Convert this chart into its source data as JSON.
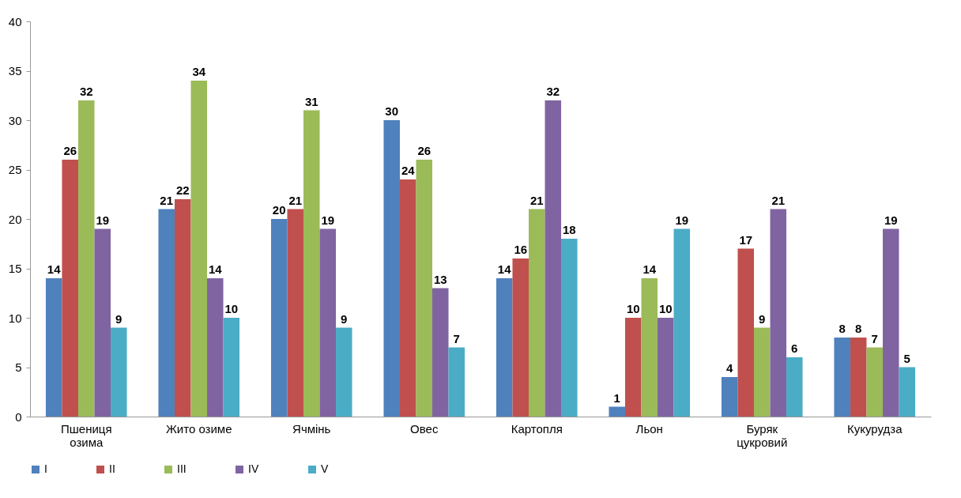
{
  "chart_data": {
    "type": "bar",
    "categories": [
      "Пшениця\nозима",
      "Жито озиме",
      "Ячмінь",
      "Овес",
      "Картопля",
      "Льон",
      "Буряк\nцукровий",
      "Кукурудза"
    ],
    "series": [
      {
        "name": "I",
        "color": "#4f81bd",
        "values": [
          14,
          21,
          20,
          30,
          14,
          1,
          4,
          8
        ]
      },
      {
        "name": "II",
        "color": "#c0504d",
        "values": [
          26,
          22,
          21,
          24,
          16,
          10,
          17,
          8
        ]
      },
      {
        "name": "III",
        "color": "#9bbb59",
        "values": [
          32,
          34,
          31,
          26,
          21,
          14,
          9,
          7
        ]
      },
      {
        "name": "IV",
        "color": "#8064a2",
        "values": [
          19,
          14,
          19,
          13,
          32,
          10,
          21,
          19
        ]
      },
      {
        "name": "V",
        "color": "#4bacc6",
        "values": [
          9,
          10,
          9,
          7,
          18,
          19,
          6,
          5
        ]
      }
    ],
    "ylim": [
      0,
      40
    ],
    "yticks": [
      0,
      5,
      10,
      15,
      20,
      25,
      30,
      35,
      40
    ],
    "data_labels": true,
    "legend": "bottom"
  }
}
